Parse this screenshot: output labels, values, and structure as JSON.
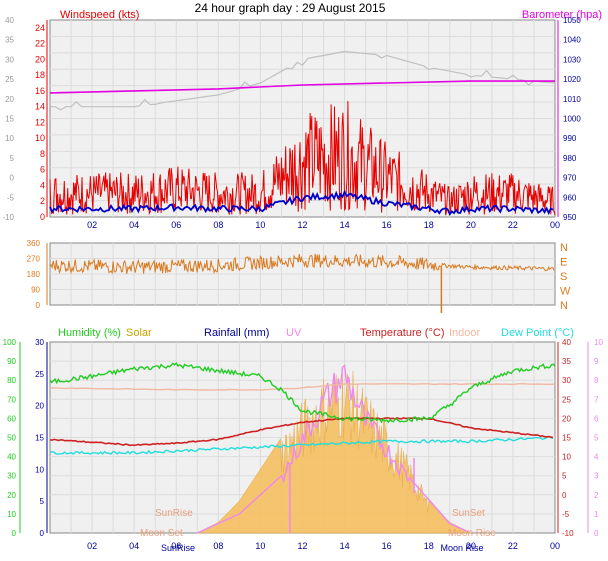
{
  "title": "24 hour graph day : 29 August 2015",
  "colors": {
    "wind": "#e60000",
    "gust_line": "#0000cc",
    "baro": "#e100e1",
    "baro_left": "#c0c0c0",
    "winddir": "#d97a20",
    "humidity": "#22cc22",
    "solar": "#c8a400",
    "rain": "#000099",
    "uv": "#ee88ee",
    "temp": "#cc2222",
    "indoor": "#f0b8a0",
    "dew": "#22dddd",
    "solar_fill": "#f5c060",
    "grid": "#dcdcdc",
    "plot_bg": "#f0f0f0"
  },
  "wind_panel": {
    "label_left": "Windspeed (kts)",
    "label_right": "Barometer (hpa)",
    "ticks_kts": [
      "0",
      "2",
      "4",
      "6",
      "8",
      "10",
      "12",
      "14",
      "16",
      "18",
      "20",
      "22",
      "24"
    ],
    "ticks_left_outer": [
      "-10",
      "-5",
      "0",
      "5",
      "10",
      "15",
      "20",
      "25",
      "30",
      "35",
      "40"
    ],
    "ticks_hpa": [
      "950",
      "960",
      "970",
      "980",
      "990",
      "1000",
      "1010",
      "1020",
      "1030",
      "1040",
      "1050"
    ]
  },
  "dir_panel": {
    "ticks_deg": [
      "0",
      "90",
      "180",
      "270",
      "360"
    ],
    "compass": [
      "N",
      "W",
      "S",
      "E",
      "N"
    ]
  },
  "bottom_panel": {
    "labels": {
      "humidity": "Humidity (%)",
      "solar": "Solar",
      "rain": "Rainfall (mm)",
      "uv": "UV",
      "temp": "Temperature (°C)",
      "indoor": "Indoor",
      "dew": "Dew Point (°C)"
    },
    "ticks_humidity": [
      "0",
      "10",
      "20",
      "30",
      "40",
      "50",
      "60",
      "70",
      "80",
      "90",
      "100"
    ],
    "ticks_rain": [
      "0",
      "5",
      "10",
      "15",
      "20",
      "25",
      "30"
    ],
    "ticks_temp": [
      "-10",
      "-5",
      "0",
      "5",
      "10",
      "15",
      "20",
      "25",
      "30",
      "35",
      "40"
    ],
    "ticks_uv": [
      "0",
      "1",
      "2",
      "3",
      "4",
      "5",
      "6",
      "7",
      "8",
      "9",
      "10"
    ],
    "annotations": {
      "sunrise": "SunRise",
      "sunset": "SunSet",
      "moon_rise": "Moon Rise",
      "moon_set": "Moon Set"
    },
    "hour_labels": [
      "02",
      "04",
      "06",
      "08",
      "10",
      "12",
      "14",
      "16",
      "18",
      "20",
      "22",
      "00"
    ],
    "axis_marks": [
      "SunRise",
      "Moon Rise"
    ]
  },
  "x_hours": [
    "02",
    "04",
    "06",
    "08",
    "10",
    "12",
    "14",
    "16",
    "18",
    "20",
    "22",
    "00"
  ],
  "chart_data": [
    {
      "type": "line",
      "series": [
        {
          "name": "Windspeed (kts)",
          "x_hours": [
            0,
            2,
            4,
            6,
            8,
            10,
            11,
            12,
            14,
            16,
            18,
            19,
            20,
            22,
            24
          ],
          "values": [
            3,
            3,
            3,
            3.5,
            3,
            3,
            5,
            7,
            8,
            5,
            3,
            2,
            3,
            3,
            2
          ]
        },
        {
          "name": "Barometer (hpa)",
          "x_hours": [
            0,
            4,
            8,
            12,
            16,
            20,
            24
          ],
          "values": [
            1013,
            1014,
            1015,
            1017,
            1018,
            1019,
            1019
          ]
        }
      ],
      "ylim_kts": [
        0,
        25
      ],
      "ylim_hpa": [
        950,
        1050
      ]
    },
    {
      "type": "scatter",
      "series": [
        {
          "name": "Wind direction",
          "x_hours": [
            0,
            4,
            8,
            12,
            16,
            20,
            24
          ],
          "values": [
            230,
            220,
            230,
            260,
            250,
            220,
            210
          ]
        }
      ],
      "ylim": [
        0,
        360
      ]
    },
    {
      "type": "line",
      "series": [
        {
          "name": "Humidity (%)",
          "x_hours": [
            0,
            2,
            4,
            6,
            8,
            10,
            11,
            12,
            14,
            16,
            18,
            19,
            20,
            22,
            24
          ],
          "values": [
            79,
            82,
            86,
            88,
            85,
            82,
            75,
            64,
            60,
            59,
            60,
            67,
            76,
            85,
            88
          ]
        },
        {
          "name": "Temperature (°C)",
          "x_hours": [
            0,
            4,
            6,
            8,
            10,
            12,
            14,
            16,
            18,
            20,
            24
          ],
          "values": [
            14.5,
            13,
            13.5,
            14.5,
            17,
            19,
            20,
            20,
            20,
            17.5,
            15
          ]
        },
        {
          "name": "Indoor",
          "x_hours": [
            0,
            6,
            10,
            12,
            14,
            18,
            22,
            24
          ],
          "values": [
            28,
            27.5,
            27.5,
            28,
            29,
            29,
            29,
            29
          ]
        },
        {
          "name": "Dew Point (°C)",
          "x_hours": [
            0,
            4,
            8,
            12,
            16,
            20,
            24
          ],
          "values": [
            11,
            11,
            12,
            13,
            14,
            14,
            15
          ]
        },
        {
          "name": "Solar",
          "x_hours": [
            7,
            8,
            9,
            10,
            11,
            12,
            13,
            14,
            15,
            16,
            17,
            18,
            19,
            20
          ],
          "values": [
            0,
            50,
            150,
            300,
            450,
            600,
            720,
            780,
            650,
            500,
            350,
            150,
            50,
            0
          ]
        }
      ],
      "ylim_humidity": [
        0,
        100
      ],
      "ylim_temp": [
        -10,
        40
      ]
    }
  ]
}
